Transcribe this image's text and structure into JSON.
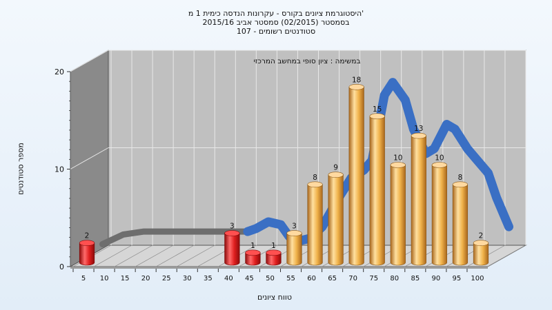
{
  "header": {
    "line1": "היסטוגרמת ציונים בקורס - עקרונות הנדסה כימית 1 מ'",
    "line2": "בסמסטר (02/2015) סמסטר אביב 2015/16",
    "line3": "סטודנטים רשומים - 107"
  },
  "chart_data": {
    "type": "bar",
    "title": "היסטוגרמת ציונים בקורס - עקרונות הנדסה כימית 1 מ'",
    "subtitle": "במשימה : ציון סופי במחשב המרכזי",
    "xlabel": "טווח ציונים",
    "ylabel": "מספר סטודנטים",
    "ylim": [
      0,
      20
    ],
    "yticks": [
      0,
      10,
      20
    ],
    "categories": [
      "5",
      "10",
      "15",
      "20",
      "25",
      "30",
      "35",
      "40",
      "45",
      "50",
      "55",
      "60",
      "65",
      "70",
      "75",
      "80",
      "85",
      "90",
      "95",
      "100"
    ],
    "values": [
      2,
      0,
      0,
      0,
      0,
      0,
      0,
      3,
      1,
      1,
      3,
      8,
      9,
      18,
      15,
      10,
      13,
      10,
      8,
      2
    ],
    "fail_threshold": 55,
    "fail_color": "#e01f1f",
    "pass_color": "#f0b24a",
    "trend_line": {
      "color": "#3a6fc4",
      "x": [
        5,
        10,
        15,
        20,
        25,
        30,
        35,
        40,
        42,
        45,
        48,
        50,
        53,
        55,
        58,
        60,
        62,
        65,
        68,
        70,
        73,
        75,
        78,
        80,
        83,
        85,
        88,
        90,
        93,
        95,
        98,
        100,
        103
      ],
      "y": [
        1.2,
        2.2,
        2.5,
        2.5,
        2.5,
        2.5,
        2.5,
        2.5,
        2.8,
        3.5,
        3.2,
        2.0,
        1.6,
        1.8,
        3.0,
        4.5,
        6.0,
        8.0,
        8.8,
        9.8,
        16.5,
        17.8,
        16.0,
        13.0,
        10.5,
        11.0,
        13.5,
        13.0,
        11.0,
        10.0,
        8.5,
        6.0,
        3.0
      ]
    },
    "grid": true,
    "legend": "none",
    "wall_color": "#c0c0c0",
    "left_wall_color": "#8a8a8a"
  }
}
